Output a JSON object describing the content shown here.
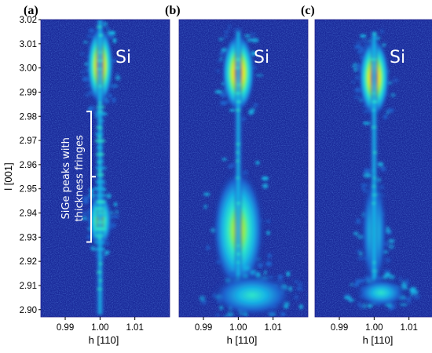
{
  "chart_data": {
    "type": "heatmap",
    "title": "",
    "xlabel": "h [110]",
    "ylabel": "l [001]",
    "xlim": [
      0.983,
      1.02
    ],
    "ylim": [
      2.897,
      3.02
    ],
    "xticks": [
      {
        "value": 0.99,
        "label": "0.99"
      },
      {
        "value": 1.0,
        "label": "1.00"
      },
      {
        "value": 1.01,
        "label": "1.01"
      }
    ],
    "yticks": [
      {
        "value": 2.9,
        "label": "2.90"
      },
      {
        "value": 2.91,
        "label": "2.91"
      },
      {
        "value": 2.92,
        "label": "2.92"
      },
      {
        "value": 2.93,
        "label": "2.93"
      },
      {
        "value": 2.94,
        "label": "2.94"
      },
      {
        "value": 2.95,
        "label": "2.95"
      },
      {
        "value": 2.96,
        "label": "2.96"
      },
      {
        "value": 2.97,
        "label": "2.97"
      },
      {
        "value": 2.98,
        "label": "2.98"
      },
      {
        "value": 2.99,
        "label": "2.99"
      },
      {
        "value": 3.0,
        "label": "3.00"
      },
      {
        "value": 3.01,
        "label": "3.01"
      },
      {
        "value": 3.02,
        "label": "3.02"
      }
    ],
    "colors": {
      "background": "#1a2a9a",
      "scale": [
        "#1a2a9a",
        "#1e64d0",
        "#18b4e6",
        "#2fe8c8",
        "#9cf040",
        "#ffe820",
        "#ff8a10",
        "#e81a0a"
      ]
    },
    "panels": [
      {
        "letter": "(a)",
        "peak_label": "Si",
        "annotation": {
          "lines": [
            "SiGe peaks with",
            "thickness fringes"
          ],
          "l_range": [
            2.928,
            2.982
          ]
        },
        "features": [
          {
            "kind": "peak",
            "h": 1.0,
            "l": 3.001,
            "h_width": 0.0013,
            "l_width": 0.0055,
            "intensity": 1.0
          },
          {
            "kind": "peak",
            "h": 1.0,
            "l": 2.937,
            "h_width": 0.0012,
            "l_width": 0.004,
            "intensity": 0.72
          },
          {
            "kind": "streak",
            "h": 1.0,
            "l_range": [
              2.898,
              3.02
            ],
            "intensity": 0.5
          },
          {
            "kind": "fringes",
            "h": 1.0,
            "l_range": [
              2.925,
              2.985
            ],
            "intensity": 0.55
          }
        ]
      },
      {
        "letter": "(b)",
        "peak_label": "Si",
        "features": [
          {
            "kind": "peak",
            "h": 1.0,
            "l": 2.998,
            "h_width": 0.0016,
            "l_width": 0.0055,
            "intensity": 1.0
          },
          {
            "kind": "peak",
            "h": 1.0,
            "l": 2.933,
            "h_width": 0.0025,
            "l_width": 0.0085,
            "intensity": 0.6
          },
          {
            "kind": "streak",
            "h": 1.0,
            "l_range": [
              2.902,
              3.015
            ],
            "intensity": 0.45
          },
          {
            "kind": "tail",
            "h": 1.004,
            "l": 2.906,
            "h_width": 0.004,
            "l_width": 0.003,
            "intensity": 0.45
          }
        ]
      },
      {
        "letter": "(c)",
        "peak_label": "Si",
        "features": [
          {
            "kind": "peak",
            "h": 1.0,
            "l": 2.996,
            "h_width": 0.0015,
            "l_width": 0.0055,
            "intensity": 1.0
          },
          {
            "kind": "peak",
            "h": 1.0,
            "l": 2.932,
            "h_width": 0.0013,
            "l_width": 0.008,
            "intensity": 0.55
          },
          {
            "kind": "streak",
            "h": 1.0,
            "l_range": [
              2.902,
              3.015
            ],
            "intensity": 0.45
          },
          {
            "kind": "tail",
            "h": 1.002,
            "l": 2.907,
            "h_width": 0.0025,
            "l_width": 0.002,
            "intensity": 0.5
          }
        ]
      }
    ]
  }
}
